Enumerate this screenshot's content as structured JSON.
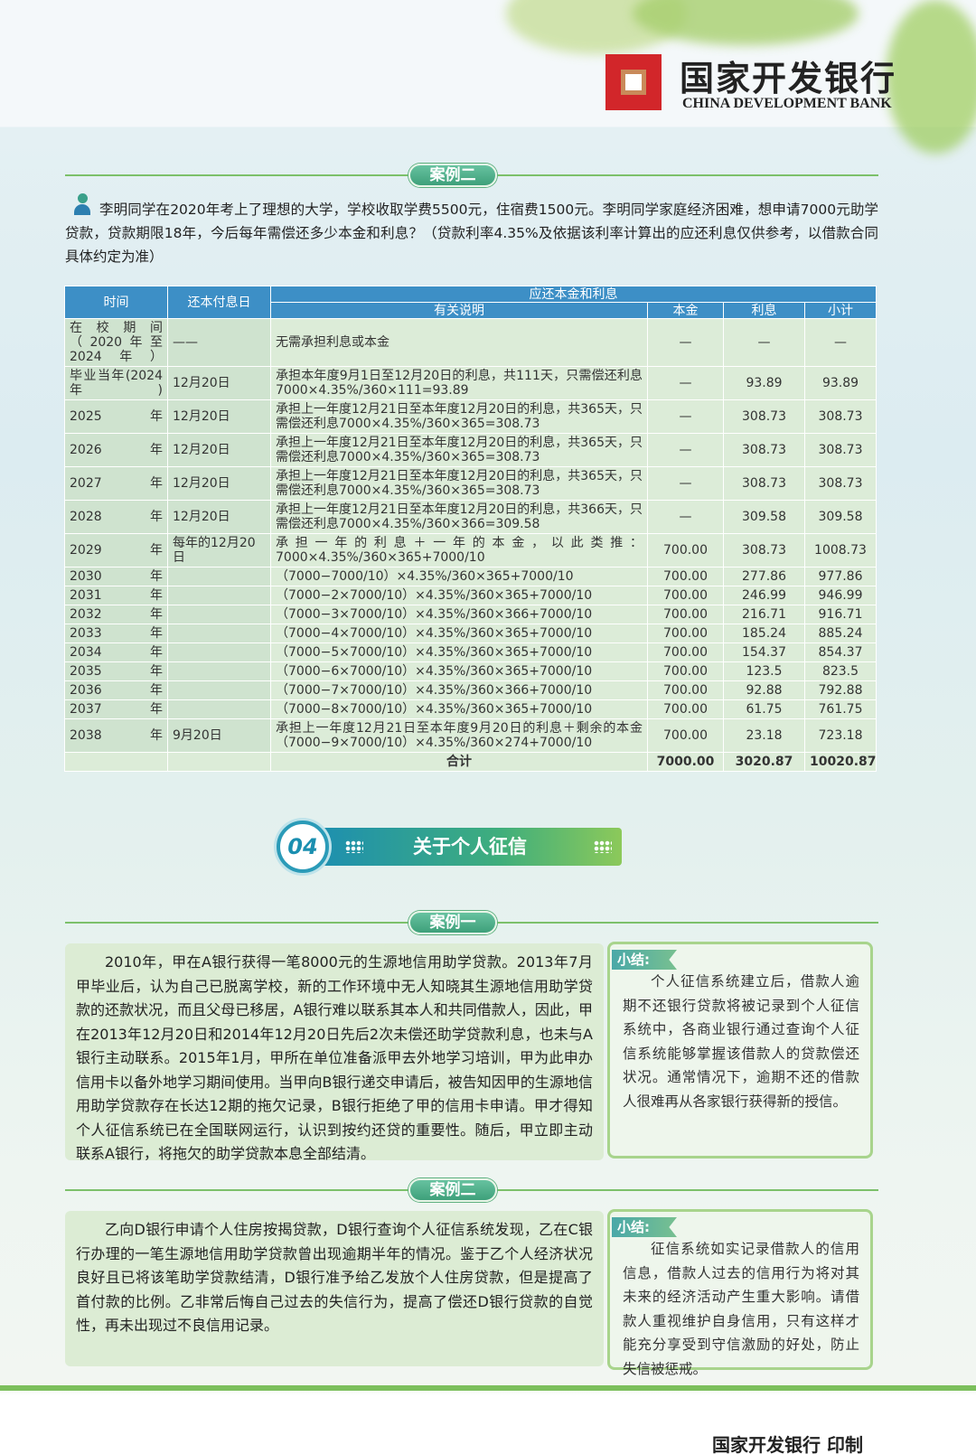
{
  "header": {
    "logo_cn": "国家开发银行",
    "logo_en": "CHINA DEVELOPMENT BANK"
  },
  "case_a": {
    "label": "案例二",
    "intro": "李明同学在2020年考上了理想的大学，学校收取学费5500元，住宿费1500元。李明同学家庭经济困难，想申请7000元助学贷款，贷款期限18年，今后每年需偿还多少本金和利息？（贷款利率4.35%及依据该利率计算出的应还利息仅供参考，以借款合同具体约定为准）",
    "table": {
      "header_top": [
        "时间",
        "还本付息日",
        "应还本金和利息"
      ],
      "header_sub": [
        "有关说明",
        "本金",
        "利息",
        "小计"
      ],
      "rows": [
        [
          "在校期间（2020年至2024年）",
          "——",
          "无需承担利息或本金",
          "—",
          "—",
          "—"
        ],
        [
          "毕业当年(2024年)",
          "12月20日",
          "承担本年度9月1日至12月20日的利息，共111天，只需偿还利息7000×4.35%/360×111=93.89",
          "—",
          "93.89",
          "93.89"
        ],
        [
          "2025年",
          "12月20日",
          "承担上一年度12月21日至本年度12月20日的利息，共365天，只需偿还利息7000×4.35%/360×365=308.73",
          "—",
          "308.73",
          "308.73"
        ],
        [
          "2026年",
          "12月20日",
          "承担上一年度12月21日至本年度12月20日的利息，共365天，只需偿还利息7000×4.35%/360×365=308.73",
          "—",
          "308.73",
          "308.73"
        ],
        [
          "2027年",
          "12月20日",
          "承担上一年度12月21日至本年度12月20日的利息，共365天，只需偿还利息7000×4.35%/360×365=308.73",
          "—",
          "308.73",
          "308.73"
        ],
        [
          "2028年",
          "12月20日",
          "承担上一年度12月21日至本年度12月20日的利息，共366天，只需偿还利息7000×4.35%/360×366=309.58",
          "—",
          "309.58",
          "309.58"
        ],
        [
          "2029年",
          "每年的12月20日",
          "承担一年的利息＋一年的本金，以此类推：7000×4.35%/360×365+7000/10",
          "700.00",
          "308.73",
          "1008.73"
        ],
        [
          "2030年",
          null,
          "（7000−7000/10）×4.35%/360×365+7000/10",
          "700.00",
          "277.86",
          "977.86"
        ],
        [
          "2031年",
          null,
          "（7000−2×7000/10）×4.35%/360×365+7000/10",
          "700.00",
          "246.99",
          "946.99"
        ],
        [
          "2032年",
          null,
          "（7000−3×7000/10）×4.35%/360×366+7000/10",
          "700.00",
          "216.71",
          "916.71"
        ],
        [
          "2033年",
          null,
          "（7000−4×7000/10）×4.35%/360×365+7000/10",
          "700.00",
          "185.24",
          "885.24"
        ],
        [
          "2034年",
          null,
          "（7000−5×7000/10）×4.35%/360×365+7000/10",
          "700.00",
          "154.37",
          "854.37"
        ],
        [
          "2035年",
          null,
          "（7000−6×7000/10）×4.35%/360×365+7000/10",
          "700.00",
          "123.5",
          "823.5"
        ],
        [
          "2036年",
          null,
          "（7000−7×7000/10）×4.35%/360×366+7000/10",
          "700.00",
          "92.88",
          "792.88"
        ],
        [
          "2037年",
          null,
          "（7000−8×7000/10）×4.35%/360×365+7000/10",
          "700.00",
          "61.75",
          "761.75"
        ],
        [
          "2038年",
          "9月20日",
          "承担上一年度12月21日至本年度9月20日的利息＋剩余的本金（7000−9×7000/10）×4.35%/360×274+7000/10",
          "700.00",
          "23.18",
          "723.18"
        ]
      ],
      "total": [
        "合计",
        "7000.00",
        "3020.87",
        "10020.87"
      ]
    }
  },
  "section": {
    "number": "04",
    "title": "关于个人征信"
  },
  "cases": [
    {
      "label": "案例一",
      "text": "2010年，甲在A银行获得一笔8000元的生源地信用助学贷款。2013年7月甲毕业后，认为自己已脱离学校，新的工作环境中无人知晓其生源地信用助学贷款的还款状况，而且父母已移居，A银行难以联系其本人和共同借款人，因此，甲在2013年12月20日和2014年12月20日先后2次未偿还助学贷款利息，也未与A银行主动联系。2015年1月，甲所在单位准备派甲去外地学习培训，甲为此申办信用卡以备外地学习期间使用。当甲向B银行递交申请后，被告知因甲的生源地信用助学贷款存在长达12期的拖欠记录，B银行拒绝了甲的信用卡申请。甲才得知个人征信系统已在全国联网运行，认识到按约还贷的重要性。随后，甲立即主动联系A银行，将拖欠的助学贷款本息全部结清。",
      "summary_label": "小结:",
      "summary": "个人征信系统建立后，借款人逾期不还银行贷款将被记录到个人征信系统中，各商业银行通过查询个人征信系统能够掌握该借款人的贷款偿还状况。通常情况下，逾期不还的借款人很难再从各家银行获得新的授信。"
    },
    {
      "label": "案例二",
      "text": "乙向D银行申请个人住房按揭贷款，D银行查询个人征信系统发现，乙在C银行办理的一笔生源地信用助学贷款曾出现逾期半年的情况。鉴于乙个人经济状况良好且已将该笔助学贷款结清，D银行准予给乙发放个人住房贷款，但是提高了首付款的比例。乙非常后悔自己过去的失信行为，提高了偿还D银行贷款的自觉性，再未出现过不良信用记录。",
      "summary_label": "小结:",
      "summary": "征信系统如实记录借款人的信用信息，借款人过去的信用行为将对其未来的经济活动产生重大影响。请借款人重视维护自身信用，只有这样才能充分享受到守信激励的好处，防止失信被惩戒。"
    }
  ],
  "footer": "国家开发银行 印制"
}
